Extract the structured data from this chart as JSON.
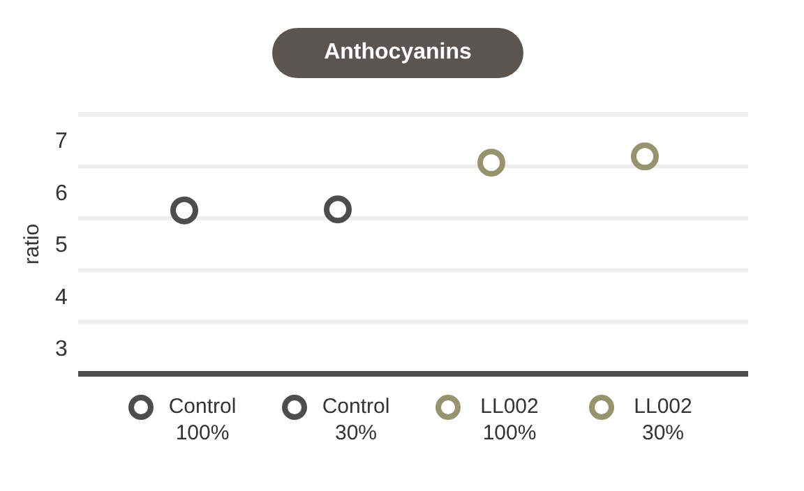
{
  "chart_data": {
    "type": "scatter",
    "title": "Anthocyanins",
    "ylabel": "ratio",
    "categories": [
      null,
      null,
      null,
      null
    ],
    "series": [
      {
        "name": "Control 100%",
        "color": "#4d4d4d",
        "values": [
          6.15,
          null,
          null,
          null
        ]
      },
      {
        "name": "Control 30%",
        "color": "#4d4d4d",
        "values": [
          null,
          6.17,
          null,
          null
        ]
      },
      {
        "name": "LL002 100%",
        "color": "#96946e",
        "values": [
          null,
          null,
          7.07,
          null
        ]
      },
      {
        "name": "LL002 30%",
        "color": "#96946e",
        "values": [
          null,
          null,
          null,
          7.19
        ]
      }
    ],
    "ylim": [
      3,
      8
    ],
    "yticks": [
      3,
      4,
      5,
      6,
      7,
      {
        "value": 8,
        "label": null
      }
    ],
    "grid": true,
    "legend": "bottom",
    "marker": "circle"
  }
}
